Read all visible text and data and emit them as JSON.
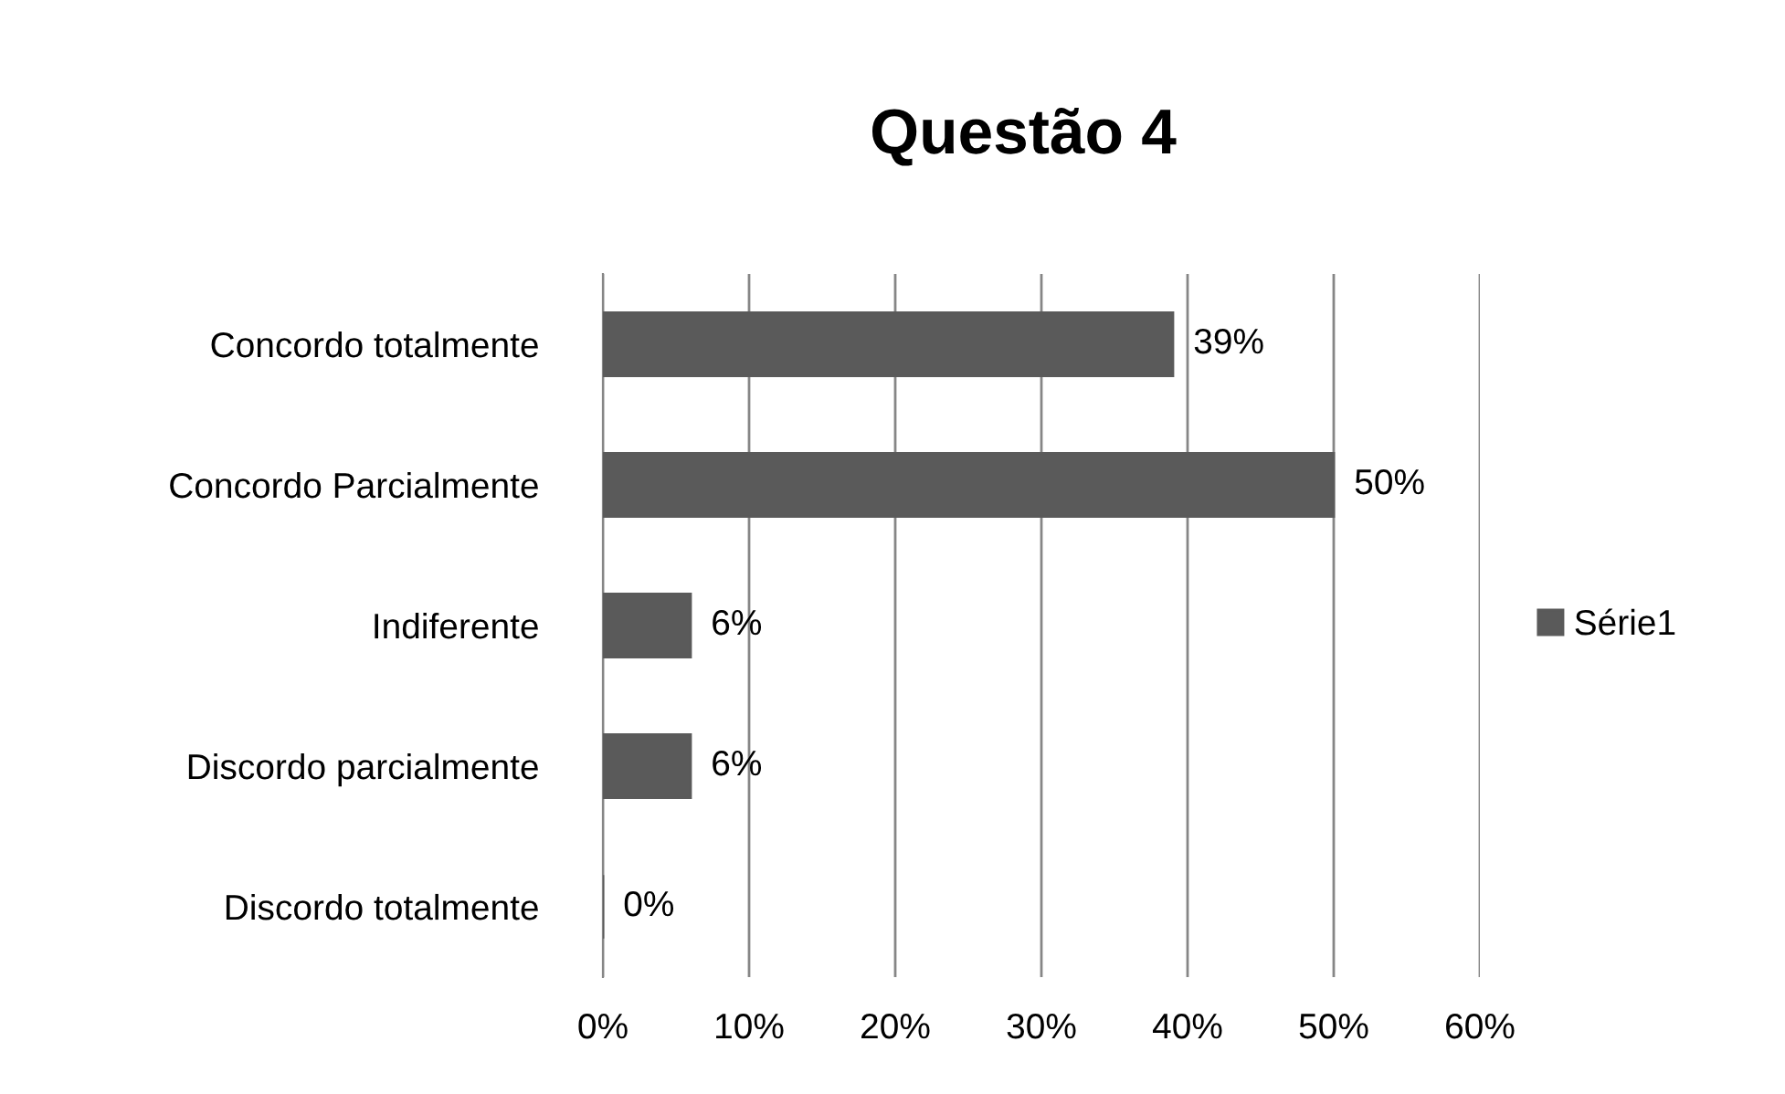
{
  "chart_data": {
    "type": "bar",
    "orientation": "horizontal",
    "title": "Questão 4",
    "categories": [
      "Concordo totalmente",
      "Concordo Parcialmente",
      "Indiferente",
      "Discordo parcialmente",
      "Discordo totalmente"
    ],
    "series": [
      {
        "name": "Série1",
        "color": "#5a5a5a",
        "values": [
          39,
          50,
          6,
          6,
          0
        ],
        "value_labels": [
          "39%",
          "50%",
          "6%",
          "6%",
          "0%"
        ]
      }
    ],
    "xlim": [
      0,
      60
    ],
    "xticks": [
      {
        "value": 0,
        "label": "0%"
      },
      {
        "value": 10,
        "label": "10%"
      },
      {
        "value": 20,
        "label": "20%"
      },
      {
        "value": 30,
        "label": "30%"
      },
      {
        "value": 40,
        "label": "40%"
      },
      {
        "value": 50,
        "label": "50%"
      },
      {
        "value": 60,
        "label": "60%"
      }
    ],
    "grid": "x",
    "legend": "right"
  }
}
